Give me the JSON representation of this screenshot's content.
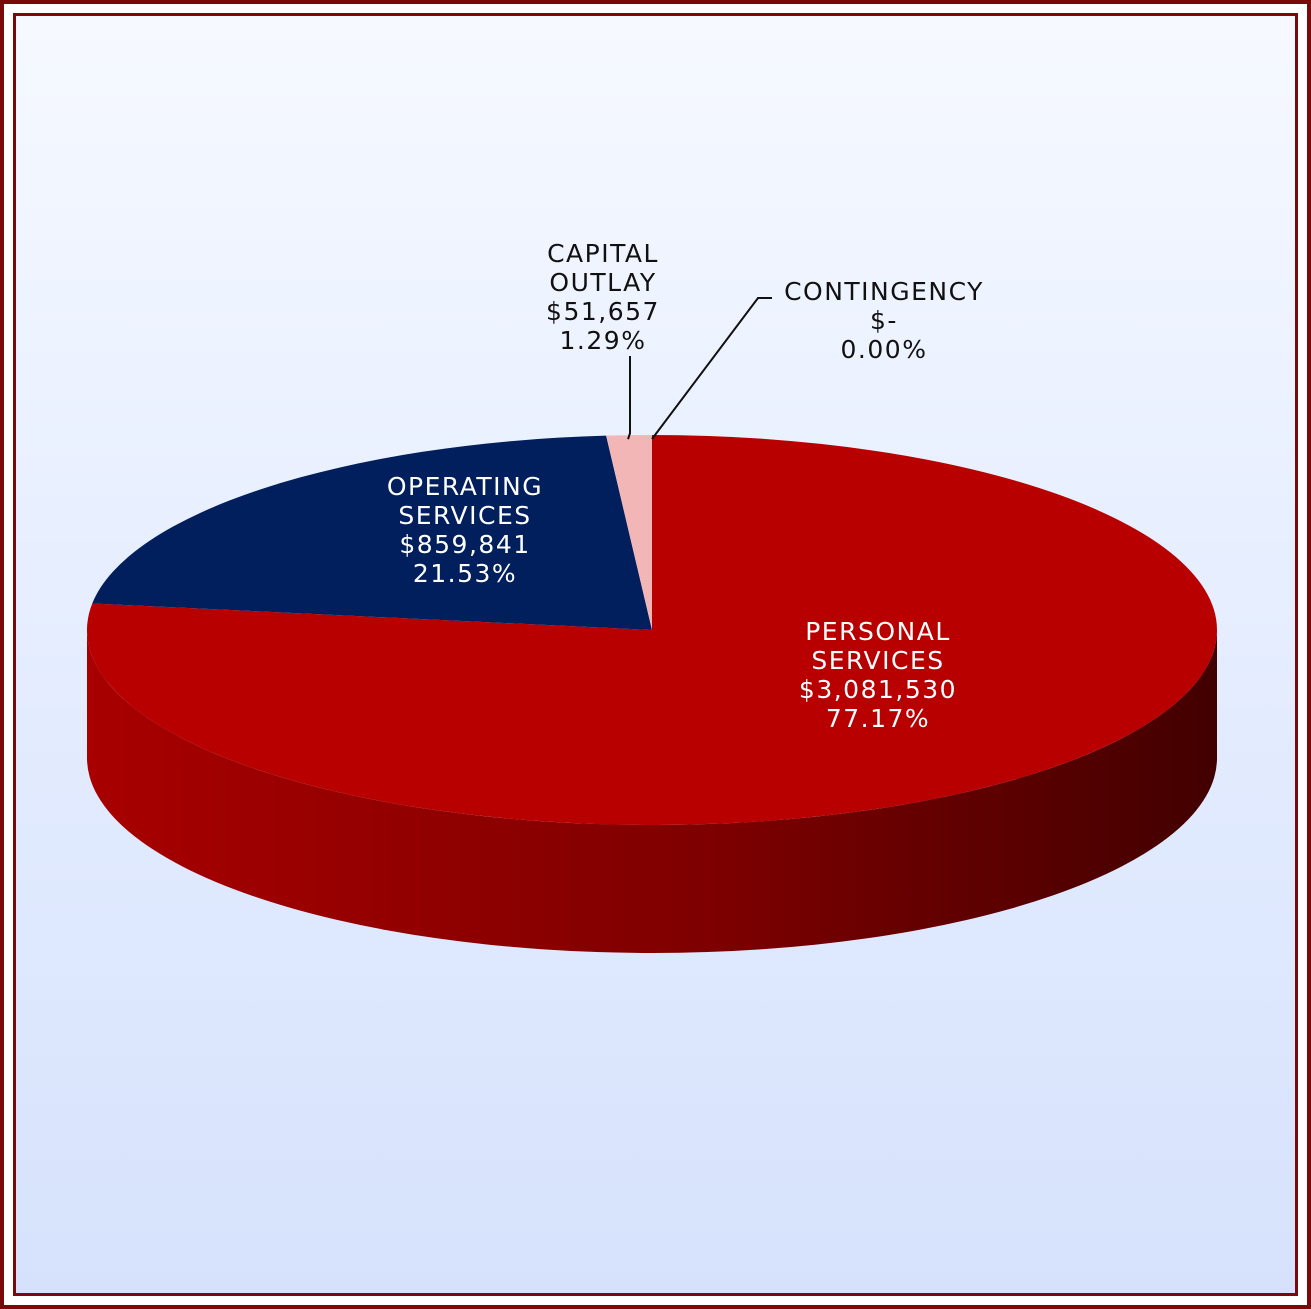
{
  "chart_data": {
    "type": "pie",
    "title": "",
    "slices": [
      {
        "key": "personal",
        "lines": [
          "PERSONAL",
          "SERVICES"
        ],
        "amount": "$3,081,530",
        "percent_label": "77.17%",
        "value": 3081530,
        "percent": 77.17,
        "color": "#b80000",
        "side_color": "#8c0000"
      },
      {
        "key": "operating",
        "lines": [
          "OPERATING",
          "SERVICES"
        ],
        "amount": "$859,841",
        "percent_label": "21.53%",
        "value": 859841,
        "percent": 21.53,
        "color": "#001f5c",
        "side_color": "#00123a"
      },
      {
        "key": "capital",
        "lines": [
          "CAPITAL",
          "OUTLAY"
        ],
        "amount": "$51,657",
        "percent_label": "1.29%",
        "value": 51657,
        "percent": 1.29,
        "color": "#f2b6b6",
        "side_color": "#c98d8d"
      },
      {
        "key": "contingency",
        "lines": [
          "CONTINGENCY"
        ],
        "amount": "$-",
        "percent_label": "0.00%",
        "value": 0,
        "percent": 0.0,
        "color": "#7a9cd0",
        "side_color": "#5a7cb0"
      }
    ],
    "start_angle": "top, clockwise",
    "style": "3d-tilted",
    "legend": "none",
    "border_color": "#7a0a0a"
  }
}
